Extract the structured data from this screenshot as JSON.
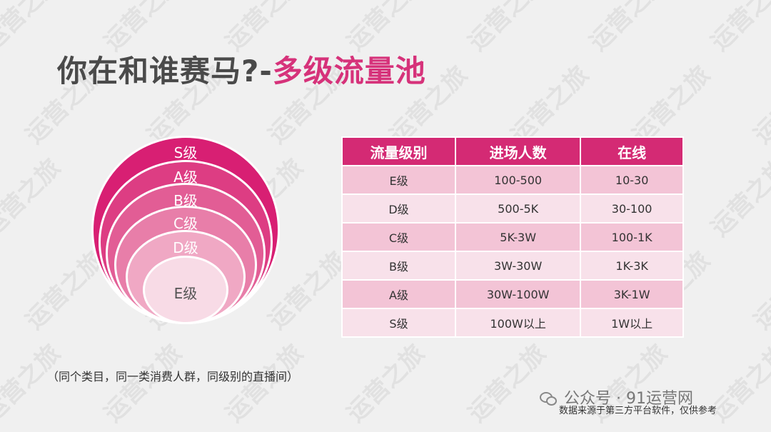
{
  "title": {
    "prefix": "你在和谁赛马?-",
    "highlight": "多级流量池"
  },
  "circles": [
    {
      "label": "S级",
      "color": "#d81f73",
      "textColor": "#ffffff"
    },
    {
      "label": "A级",
      "color": "#dd3d83",
      "textColor": "#ffffff"
    },
    {
      "label": "B级",
      "color": "#e25d95",
      "textColor": "#ffffff"
    },
    {
      "label": "C级",
      "color": "#e87ea9",
      "textColor": "#ffffff"
    },
    {
      "label": "D级",
      "color": "#f0a8c4",
      "textColor": "#ffffff"
    },
    {
      "label": "E级",
      "color": "#f8dbe6",
      "textColor": "#555555"
    }
  ],
  "table": {
    "headers": [
      "流量级别",
      "进场人数",
      "在线"
    ],
    "rows": [
      [
        "E级",
        "100-500",
        "10-30"
      ],
      [
        "D级",
        "500-5K",
        "30-100"
      ],
      [
        "C级",
        "5K-3W",
        "100-1K"
      ],
      [
        "B级",
        "3W-30W",
        "1K-3K"
      ],
      [
        "A级",
        "30W-100W",
        "3K-1W"
      ],
      [
        "S级",
        "100W以上",
        "1W以上"
      ]
    ]
  },
  "note": "（同个类目，同一类消费人群，同级别的直播间）",
  "wechat": "公众号 · 91运营网",
  "source": "数据来源于第三方平台软件，仅供参考",
  "watermark": "运营之旅"
}
